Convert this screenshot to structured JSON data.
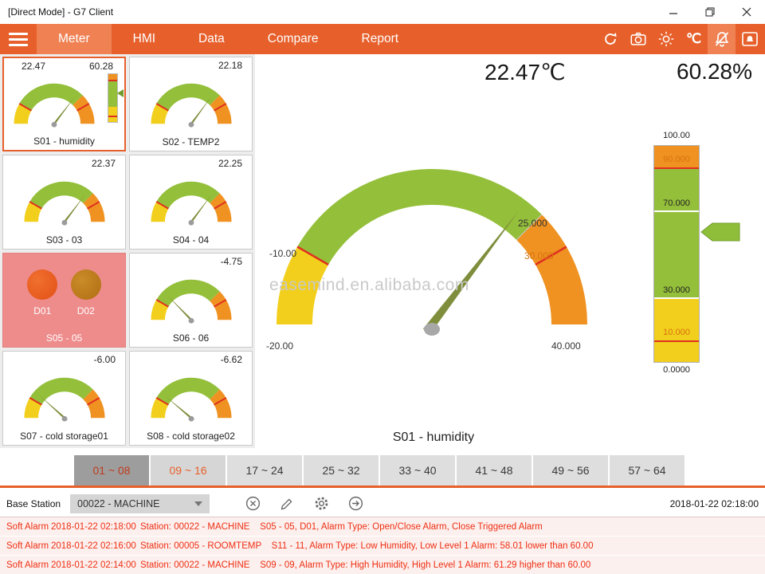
{
  "window": {
    "title": "[Direct Mode] - G7 Client"
  },
  "nav": {
    "tabs": [
      "Meter",
      "HMI",
      "Data",
      "Compare",
      "Report"
    ],
    "celsius_label": "℃"
  },
  "tiles": [
    {
      "id": "S01",
      "label": "S01 - humidity",
      "value": "22.47",
      "value2": "60.28",
      "selected": true
    },
    {
      "id": "S02",
      "label": "S02 - TEMP2",
      "value": "22.18"
    },
    {
      "id": "S03",
      "label": "S03 - 03",
      "value": "22.37"
    },
    {
      "id": "S04",
      "label": "S04 - 04",
      "value": "22.25"
    },
    {
      "id": "S05",
      "label": "S05 - 05",
      "type": "digital",
      "channels": [
        "D01",
        "D02"
      ],
      "alarm": true
    },
    {
      "id": "S06",
      "label": "S06 - 06",
      "value": "-4.75"
    },
    {
      "id": "S07",
      "label": "S07 - cold storage01",
      "value": "-6.00"
    },
    {
      "id": "S08",
      "label": "S08 - cold storage02",
      "value": "-6.62"
    }
  ],
  "main": {
    "temp_reading": "22.47℃",
    "humidity_reading": "60.28%",
    "watermark": "easemind.en.alibaba.com",
    "gauge": {
      "value": "22.47",
      "min": -20,
      "max": 40,
      "min_label": "-20.00",
      "low_label": "-10.00",
      "mid_label": "25.000",
      "high_label": "30.000",
      "max_label": "40.000",
      "title": "S01 - humidity"
    },
    "bar": {
      "value": "60.28",
      "top_label": "100.00",
      "label_90": "90.000",
      "label_70": "70.000",
      "label_30": "30.000",
      "label_10": "10.000",
      "bottom_label": "0.0000"
    }
  },
  "range_tabs": [
    "01 ~ 08",
    "09 ~ 16",
    "17 ~ 24",
    "25 ~ 32",
    "33 ~ 40",
    "41 ~ 48",
    "49 ~ 56",
    "57 ~ 64"
  ],
  "bottom_bar": {
    "label": "Base Station",
    "station": "00022 - MACHINE",
    "timestamp": "2018-01-22 02:18:00"
  },
  "alarms": [
    {
      "type": "Soft Alarm",
      "time": "2018-01-22 02:18:00",
      "message": "Station: 00022 - MACHINE    S05 - 05, D01, Alarm Type: Open/Close Alarm, Close Triggered Alarm"
    },
    {
      "type": "Soft Alarm",
      "time": "2018-01-22 02:16:00",
      "message": "Station: 00005 - ROOMTEMP    S11 - 11, Alarm Type: Low Humidity, Low Level 1 Alarm: 58.01 lower than 60.00"
    },
    {
      "type": "Soft Alarm",
      "time": "2018-01-22 02:14:00",
      "message": "Station: 00022 - MACHINE    S09 - 09, Alarm Type: High Humidity, High Level 1 Alarm: 61.29 higher than 60.00"
    }
  ],
  "colors": {
    "accent": "#e7602c",
    "gauge_green": "#94bf3a",
    "gauge_orange": "#ef9221",
    "gauge_yellow": "#f2cf1d",
    "threshold_red": "#e03020",
    "alarm_text": "#ee2e12"
  }
}
